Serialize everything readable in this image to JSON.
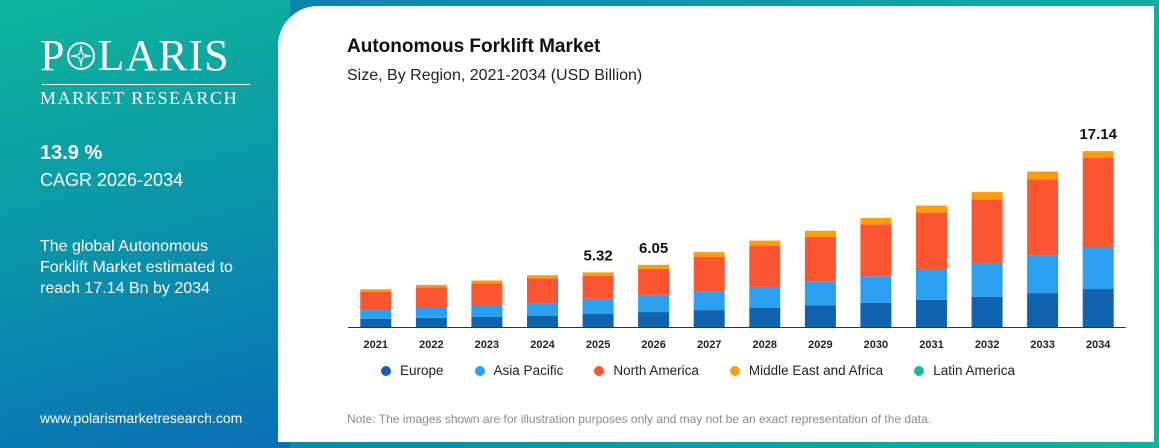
{
  "brand": {
    "name_left": "P",
    "name_right": "LARIS",
    "subtitle": "MARKET RESEARCH"
  },
  "sidebar": {
    "cagr_value": "13.9 %",
    "cagr_label": "CAGR 2026-2034",
    "summary": "The global Autonomous Forklift Market estimated to reach 17.14 Bn by 2034",
    "website": "www.polarismarketresearch.com"
  },
  "note": "Note: The images shown are for illustration purposes only and may not be an exact representation of the data.",
  "chart_data": {
    "type": "bar",
    "stacked": true,
    "title": "Autonomous Forklift Market",
    "subtitle": "Size, By Region, 2021-2034 (USD Billion)",
    "categories": [
      "2021",
      "2022",
      "2023",
      "2024",
      "2025",
      "2026",
      "2027",
      "2028",
      "2029",
      "2030",
      "2031",
      "2032",
      "2033",
      "2034"
    ],
    "series": [
      {
        "name": "Europe",
        "color": "#0f62ae",
        "values": [
          0.8,
          0.9,
          1.0,
          1.1,
          1.3,
          1.45,
          1.65,
          1.85,
          2.1,
          2.35,
          2.65,
          2.95,
          3.3,
          3.7
        ]
      },
      {
        "name": "Asia Pacific",
        "color": "#2b9ff0",
        "values": [
          0.85,
          0.95,
          1.05,
          1.2,
          1.45,
          1.6,
          1.8,
          2.05,
          2.3,
          2.6,
          2.95,
          3.3,
          3.7,
          4.1
        ]
      },
      {
        "name": "North America",
        "color": "#fb5532",
        "values": [
          1.8,
          2.0,
          2.2,
          2.45,
          2.25,
          2.6,
          3.4,
          4.0,
          4.4,
          5.05,
          5.55,
          6.2,
          7.4,
          8.7
        ]
      },
      {
        "name": "Middle East and Africa",
        "color": "#fb9d0f",
        "values": [
          0.22,
          0.25,
          0.28,
          0.3,
          0.32,
          0.4,
          0.45,
          0.52,
          0.58,
          0.62,
          0.68,
          0.7,
          0.76,
          0.64
        ]
      },
      {
        "name": "Latin America",
        "color": "#1cb89a",
        "values": [
          0,
          0,
          0,
          0,
          0,
          0,
          0,
          0,
          0,
          0,
          0,
          0,
          0,
          0
        ]
      }
    ],
    "data_labels": [
      {
        "category": "2025",
        "text": "5.32"
      },
      {
        "category": "2026",
        "text": "6.05"
      },
      {
        "category": "2034",
        "text": "17.14"
      }
    ],
    "legend": "bottom",
    "grid": false,
    "ylim": [
      0,
      20
    ]
  }
}
